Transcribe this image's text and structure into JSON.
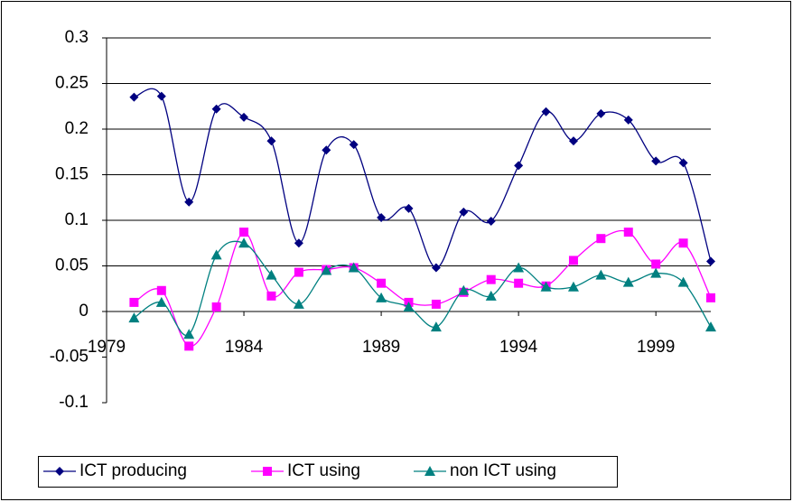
{
  "chart_data": {
    "type": "line",
    "x": [
      1980,
      1981,
      1982,
      1983,
      1984,
      1985,
      1986,
      1987,
      1988,
      1989,
      1990,
      1991,
      1992,
      1993,
      1994,
      1995,
      1996,
      1997,
      1998,
      1999,
      2000,
      2001
    ],
    "series": [
      {
        "name": "ICT producing",
        "color": "#000080",
        "marker": "diamond",
        "values": [
          0.235,
          0.236,
          0.12,
          0.222,
          0.213,
          0.187,
          0.075,
          0.177,
          0.183,
          0.103,
          0.113,
          0.048,
          0.109,
          0.099,
          0.16,
          0.219,
          0.187,
          0.217,
          0.21,
          0.165,
          0.163,
          0.055
        ]
      },
      {
        "name": "ICT using",
        "color": "#ff00ff",
        "marker": "square",
        "values": [
          0.01,
          0.023,
          -0.038,
          0.005,
          0.087,
          0.017,
          0.043,
          0.046,
          0.048,
          0.031,
          0.01,
          0.008,
          0.021,
          0.035,
          0.031,
          0.028,
          0.056,
          0.08,
          0.087,
          0.052,
          0.075,
          0.015
        ]
      },
      {
        "name": "non ICT using",
        "color": "#008080",
        "marker": "triangle",
        "values": [
          -0.007,
          0.01,
          -0.025,
          0.062,
          0.075,
          0.04,
          0.008,
          0.045,
          0.048,
          0.015,
          0.005,
          -0.017,
          0.023,
          0.017,
          0.048,
          0.027,
          0.027,
          0.04,
          0.032,
          0.042,
          0.032,
          -0.017
        ]
      }
    ],
    "xlim": [
      1979,
      2001
    ],
    "xticks": [
      1979,
      1984,
      1989,
      1994,
      1999
    ],
    "ylim": [
      -0.1,
      0.3
    ],
    "yticks": [
      0.3,
      0.25,
      0.2,
      0.15,
      0.1,
      0.05,
      0,
      -0.05,
      -0.1
    ],
    "grid": true,
    "legend": "bottom"
  }
}
